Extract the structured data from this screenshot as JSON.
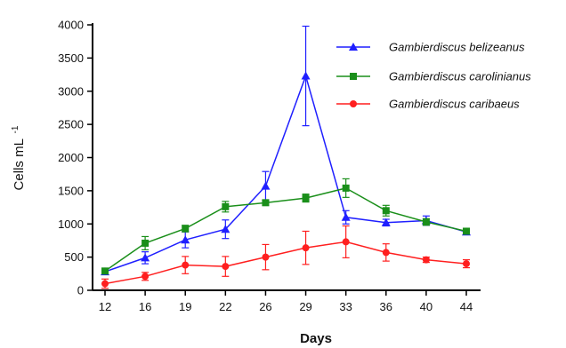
{
  "chart_data": {
    "type": "line",
    "xlabel": "Days",
    "ylabel_main": "Cells mL",
    "ylabel_sup": "-1",
    "categories": [
      "12",
      "16",
      "19",
      "22",
      "26",
      "29",
      "33",
      "36",
      "40",
      "44"
    ],
    "ylim": [
      0,
      4000
    ],
    "yticks": [
      "0",
      "500",
      "1000",
      "1500",
      "2000",
      "2500",
      "3000",
      "3500",
      "4000"
    ],
    "grid": false,
    "legend_position": "top-right",
    "series": [
      {
        "name": "Gambierdiscus belizeanus",
        "color": "#1f1fff",
        "marker": "triangle",
        "values": [
          280,
          490,
          760,
          920,
          1570,
          3230,
          1100,
          1020,
          1050,
          880
        ],
        "errors": [
          40,
          90,
          120,
          140,
          220,
          750,
          100,
          50,
          70,
          40
        ]
      },
      {
        "name": "Gambierdiscus carolinianus",
        "color": "#1a8f1a",
        "marker": "square",
        "values": [
          290,
          710,
          930,
          1260,
          1320,
          1390,
          1540,
          1200,
          1030,
          890
        ],
        "errors": [
          40,
          100,
          50,
          80,
          40,
          60,
          140,
          80,
          50,
          40
        ]
      },
      {
        "name": "Gambierdiscus caribaeus",
        "color": "#ff1f1f",
        "marker": "circle",
        "values": [
          100,
          210,
          380,
          360,
          500,
          640,
          730,
          570,
          460,
          400
        ],
        "errors": [
          70,
          60,
          130,
          150,
          190,
          250,
          240,
          130,
          40,
          60
        ]
      }
    ]
  }
}
